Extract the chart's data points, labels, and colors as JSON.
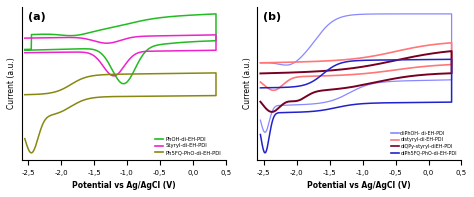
{
  "panel_a": {
    "label": "(a)",
    "xlabel": "Potential vs Ag/AgCl (V)",
    "ylabel": "Current (a.u.)",
    "xlim": [
      -2.6,
      0.5
    ],
    "xticks": [
      -2.5,
      -2.0,
      -1.5,
      -1.0,
      -0.5,
      0.0,
      0.5
    ],
    "legend": [
      "PhOH-di-EH-PDI",
      "Styryl-di-EH-PDI",
      "Ph5FQ-PhO-di-EH-PDI"
    ],
    "colors": [
      "#22bb22",
      "#ee22cc",
      "#888811"
    ]
  },
  "panel_b": {
    "label": "(b)",
    "xlabel": "Potential vs Ag/AgCl (V)",
    "ylabel": "Current (a.u.)",
    "xlim": [
      -2.6,
      0.5
    ],
    "xticks": [
      -2.5,
      -2.0,
      -1.5,
      -1.0,
      -0.5,
      0.0,
      0.5
    ],
    "legend": [
      "diPhOH- di-EH-PDI",
      "distyryl-di-EH-PDI",
      "diQPy-styryl-diEH-PDI",
      "diPh5FQ-PhO-di-EH-PDI"
    ],
    "colors": [
      "#8888ff",
      "#ff7777",
      "#770022",
      "#2222cc"
    ]
  }
}
